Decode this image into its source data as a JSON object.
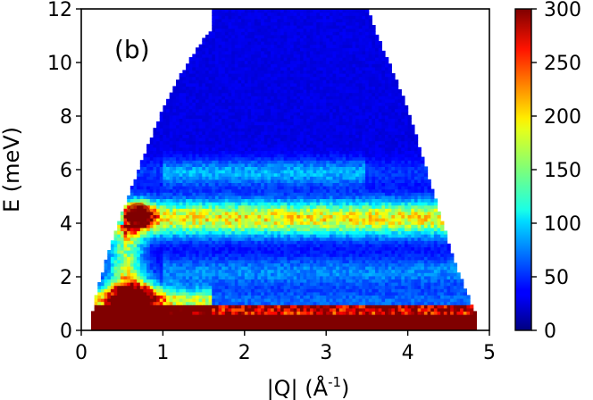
{
  "chart_data": {
    "type": "heatmap",
    "annotation": "(b)",
    "xlabel": "|Q| (Å",
    "xlabel_sup": "-1",
    "xlabel_end": ")",
    "ylabel": "E (meV)",
    "xlim": [
      0,
      5
    ],
    "ylim": [
      0,
      12
    ],
    "xticks": [
      0,
      1,
      2,
      3,
      4,
      5
    ],
    "yticks": [
      0,
      2,
      4,
      6,
      8,
      10,
      12
    ],
    "colorbar": {
      "colormap": "jet",
      "range": [
        0,
        300
      ],
      "ticks": [
        0,
        50,
        100,
        150,
        200,
        250,
        300
      ]
    },
    "kinematic_boundary": {
      "left": [
        [
          0.12,
          0.5
        ],
        [
          0.2,
          1.6
        ],
        [
          0.4,
          3.6
        ],
        [
          0.6,
          5.2
        ],
        [
          0.8,
          6.8
        ],
        [
          1.0,
          8.3
        ],
        [
          1.3,
          10.0
        ],
        [
          1.6,
          11.3
        ],
        [
          1.6,
          12.0
        ]
      ],
      "right": [
        [
          4.85,
          0.5
        ],
        [
          4.6,
          2.3
        ],
        [
          4.4,
          4.3
        ],
        [
          4.2,
          6.3
        ],
        [
          4.0,
          8.3
        ],
        [
          3.7,
          10.5
        ],
        [
          3.5,
          12.0
        ]
      ]
    },
    "features": [
      {
        "name": "elastic line",
        "q_range": [
          0.12,
          4.85
        ],
        "e_range": [
          0,
          0.55
        ],
        "intensity": 300
      },
      {
        "name": "low-energy band",
        "q_range": [
          0.2,
          4.6
        ],
        "e_range": [
          0.55,
          0.95
        ],
        "intensity": 250
      },
      {
        "name": "low-Q quasielastic",
        "q_center": 0.65,
        "e_range": [
          0.5,
          1.9
        ],
        "intensity": 300
      },
      {
        "name": "flat excitation band",
        "q_range": [
          0.5,
          4.4
        ],
        "e_center": 4.2,
        "intensity": 160
      },
      {
        "name": "low-Q excitation hotspot",
        "q_center": 0.7,
        "e_center": 4.3,
        "intensity": 300
      },
      {
        "name": "weak band",
        "q_range": [
          1.0,
          4.0
        ],
        "e_center": 2.2,
        "intensity": 80
      },
      {
        "name": "background",
        "intensity": 30
      }
    ]
  }
}
